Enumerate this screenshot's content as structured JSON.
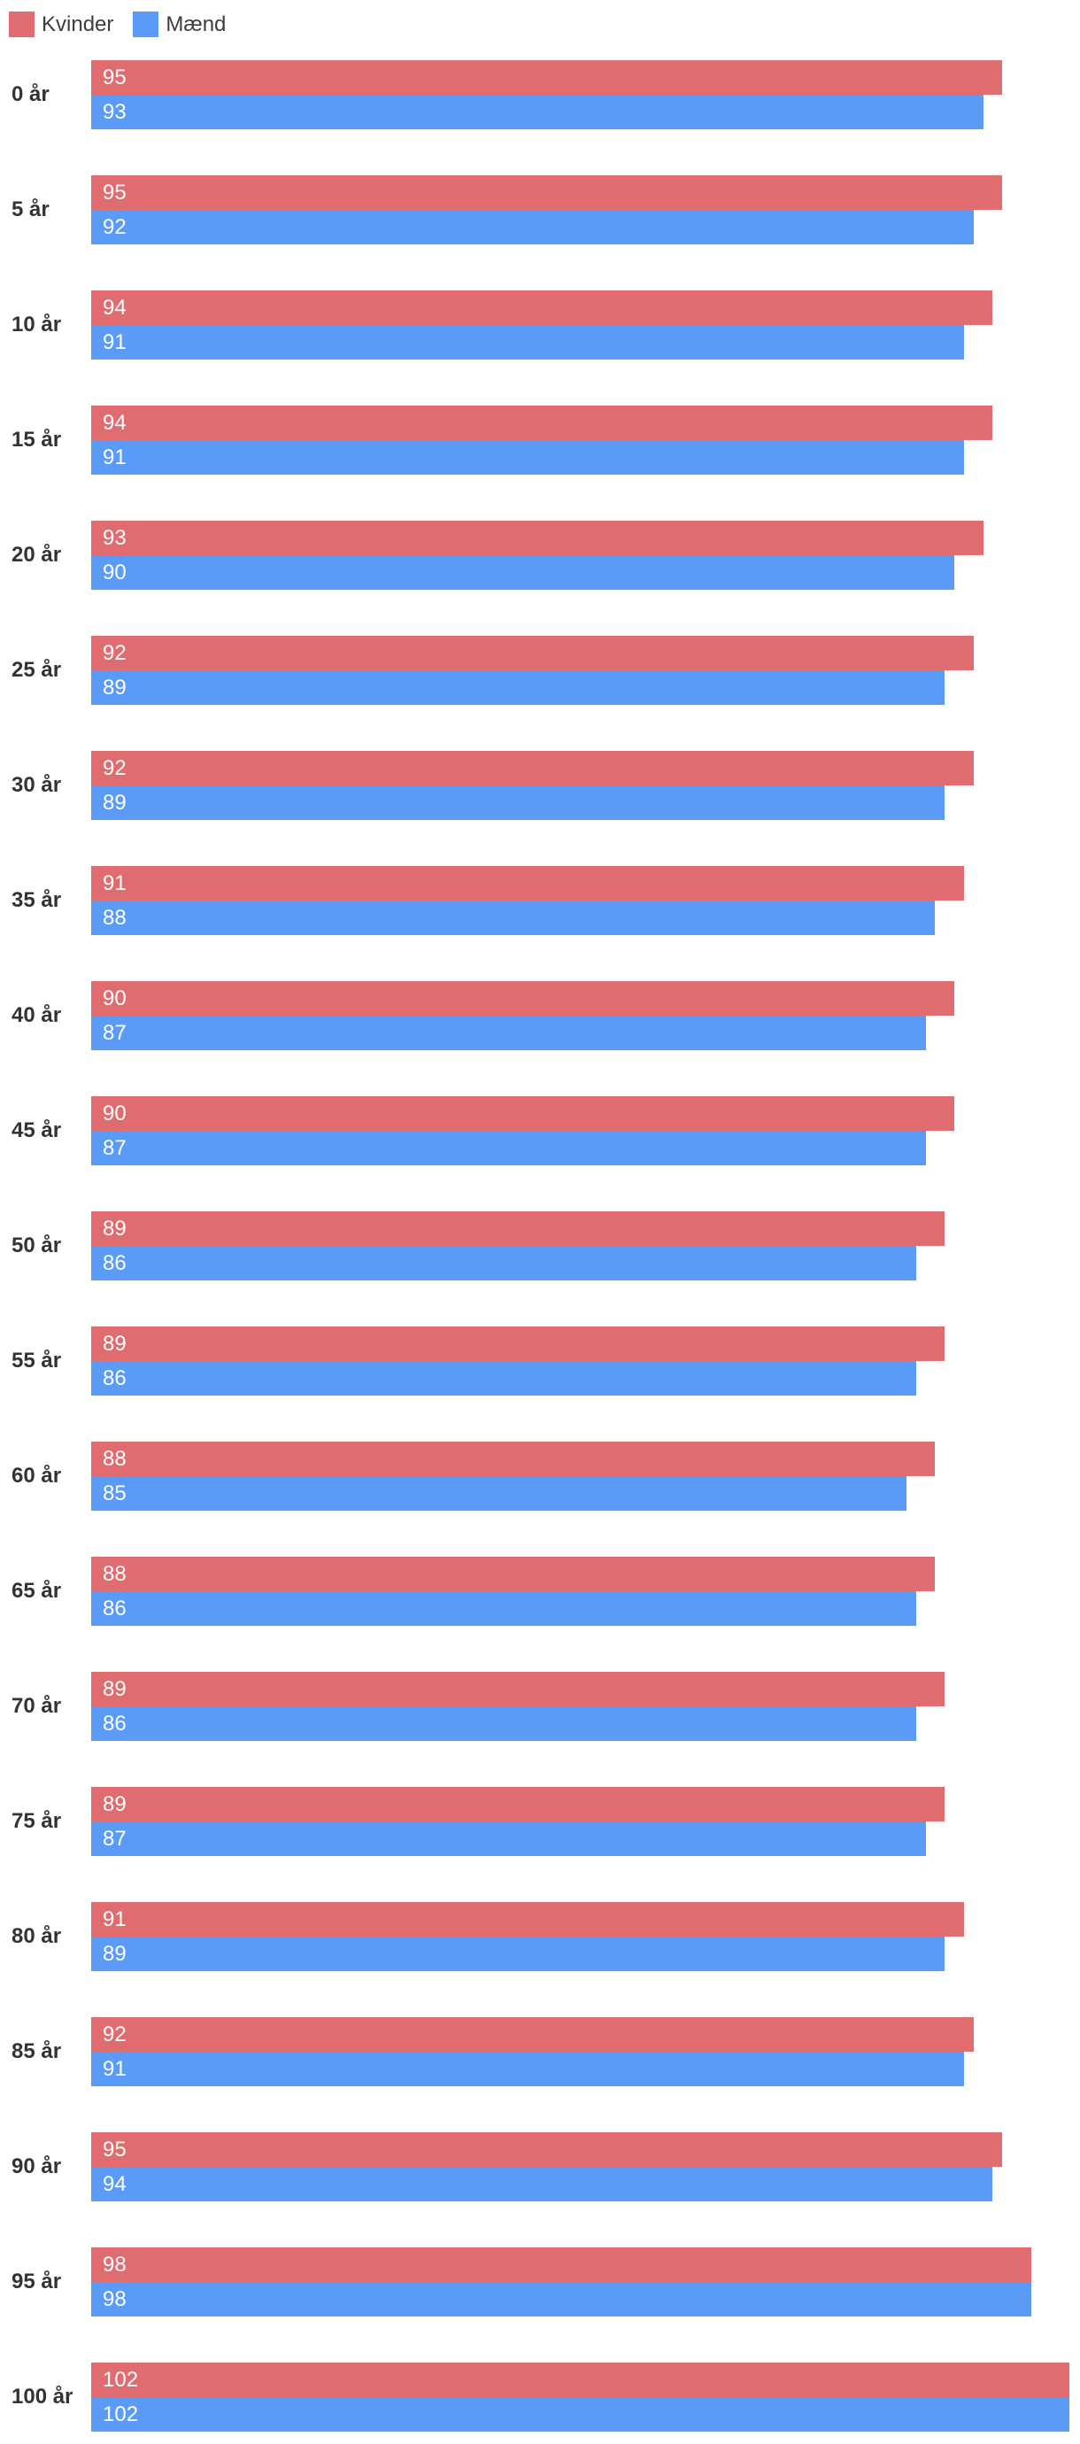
{
  "legend": {
    "position": "top-left"
  },
  "chart_data": {
    "type": "bar",
    "orientation": "horizontal",
    "title": "",
    "xlabel": "",
    "ylabel": "",
    "grid": false,
    "legend_position": "top-left",
    "value_labels": "inside-left",
    "xlim": [
      0,
      102
    ],
    "categories": [
      "0 år",
      "5 år",
      "10 år",
      "15 år",
      "20 år",
      "25 år",
      "30 år",
      "35 år",
      "40 år",
      "45 år",
      "50 år",
      "55 år",
      "60 år",
      "65 år",
      "70 år",
      "75 år",
      "80 år",
      "85 år",
      "90 år",
      "95 år",
      "100 år"
    ],
    "series": [
      {
        "name": "Kvinder",
        "color": "#e06c70",
        "values": [
          95,
          95,
          94,
          94,
          93,
          92,
          92,
          91,
          90,
          90,
          89,
          89,
          88,
          88,
          89,
          89,
          91,
          92,
          95,
          98,
          102
        ]
      },
      {
        "name": "Mænd",
        "color": "#5b9bf8",
        "values": [
          93,
          92,
          91,
          91,
          90,
          89,
          89,
          88,
          87,
          87,
          86,
          86,
          85,
          86,
          86,
          87,
          89,
          91,
          94,
          98,
          102
        ]
      }
    ],
    "text_colors": {
      "value_label": "#ffffff",
      "category_label": "#333333",
      "legend_label": "#3d3d3d"
    }
  }
}
